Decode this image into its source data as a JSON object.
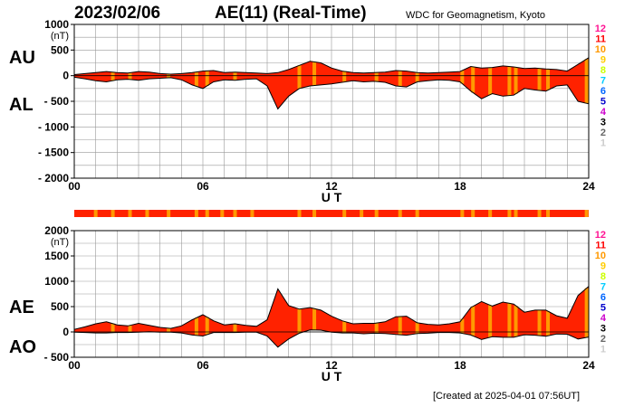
{
  "header": {
    "date": "2023/02/06",
    "title": "AE(11) (Real-Time)",
    "institution": "WDC for Geomagnetism, Kyoto"
  },
  "footer": {
    "created": "[Created at 2025-04-01 07:56UT]"
  },
  "colors": {
    "fill": "#ff2200",
    "highlight": "#ff9900",
    "grid": "#999999"
  },
  "legend_scale": [
    {
      "label": "12",
      "color": "#ff1493"
    },
    {
      "label": "11",
      "color": "#ff0000"
    },
    {
      "label": "10",
      "color": "#ff9900"
    },
    {
      "label": "9",
      "color": "#ffcc00"
    },
    {
      "label": "8",
      "color": "#ccff00"
    },
    {
      "label": "7",
      "color": "#00ccff"
    },
    {
      "label": "6",
      "color": "#0066ff"
    },
    {
      "label": "5",
      "color": "#0000cc"
    },
    {
      "label": "4",
      "color": "#cc00cc"
    },
    {
      "label": "3",
      "color": "#000000"
    },
    {
      "label": "2",
      "color": "#666666"
    },
    {
      "label": "1",
      "color": "#cccccc"
    }
  ],
  "chart_data": [
    {
      "type": "area",
      "labels_left": [
        "AU",
        "AL"
      ],
      "ylabel": "(nT)",
      "xlabel": "U T",
      "ylim": [
        -2000,
        1000
      ],
      "yticks": [
        "1000",
        "500",
        "0",
        "- 500",
        "- 1000",
        "- 1500",
        "- 2000"
      ],
      "xticks": [
        "00",
        "06",
        "12",
        "18",
        "24"
      ],
      "grid": true,
      "x": [
        0,
        0.5,
        1,
        1.5,
        2,
        2.5,
        3,
        3.5,
        4,
        4.5,
        5,
        5.5,
        6,
        6.5,
        7,
        7.5,
        8,
        8.5,
        9,
        9.5,
        10,
        10.5,
        11,
        11.5,
        12,
        12.5,
        13,
        13.5,
        14,
        14.5,
        15,
        15.5,
        16,
        16.5,
        17,
        17.5,
        18,
        18.5,
        19,
        19.5,
        20,
        20.5,
        21,
        21.5,
        22,
        22.5,
        23,
        23.5,
        24
      ],
      "series": [
        {
          "values": [
            20,
            40,
            60,
            80,
            60,
            50,
            80,
            70,
            40,
            30,
            40,
            60,
            90,
            100,
            60,
            70,
            60,
            50,
            40,
            60,
            120,
            200,
            280,
            250,
            150,
            90,
            60,
            50,
            60,
            70,
            100,
            90,
            60,
            50,
            60,
            70,
            80,
            180,
            150,
            160,
            190,
            170,
            140,
            150,
            130,
            120,
            90,
            220,
            350
          ]
        },
        {
          "values": [
            -30,
            -60,
            -100,
            -120,
            -80,
            -70,
            -90,
            -60,
            -50,
            -40,
            -80,
            -180,
            -250,
            -120,
            -80,
            -90,
            -70,
            -60,
            -200,
            -650,
            -400,
            -250,
            -200,
            -180,
            -160,
            -130,
            -100,
            -120,
            -110,
            -130,
            -200,
            -220,
            -120,
            -100,
            -80,
            -90,
            -120,
            -300,
            -450,
            -350,
            -400,
            -380,
            -250,
            -280,
            -300,
            -200,
            -180,
            -500,
            -550
          ]
        }
      ],
      "highlight_hours": [
        1.8,
        2.6,
        4.4,
        5.7,
        6.2,
        7.5,
        10.5,
        11.2,
        12.6,
        14.1,
        15.2,
        16.0,
        18.1,
        18.6,
        19.4,
        20.3,
        20.6,
        21.7,
        22.1,
        23.9
      ]
    },
    {
      "type": "area",
      "labels_left": [
        "AE",
        "AO"
      ],
      "ylabel": "(nT)",
      "xlabel": "U T",
      "ylim": [
        -500,
        2000
      ],
      "yticks": [
        "2000",
        "1500",
        "1000",
        "500",
        "0",
        "- 500"
      ],
      "xticks": [
        "00",
        "06",
        "12",
        "18",
        "24"
      ],
      "grid": true,
      "x": [
        0,
        0.5,
        1,
        1.5,
        2,
        2.5,
        3,
        3.5,
        4,
        4.5,
        5,
        5.5,
        6,
        6.5,
        7,
        7.5,
        8,
        8.5,
        9,
        9.5,
        10,
        10.5,
        11,
        11.5,
        12,
        12.5,
        13,
        13.5,
        14,
        14.5,
        15,
        15.5,
        16,
        16.5,
        17,
        17.5,
        18,
        18.5,
        19,
        19.5,
        20,
        20.5,
        21,
        21.5,
        22,
        22.5,
        23,
        23.5,
        24
      ],
      "series": [
        {
          "values": [
            50,
            100,
            160,
            200,
            140,
            120,
            170,
            130,
            90,
            70,
            120,
            240,
            340,
            220,
            140,
            160,
            130,
            110,
            240,
            850,
            520,
            450,
            480,
            430,
            310,
            220,
            160,
            170,
            170,
            200,
            300,
            310,
            180,
            150,
            140,
            160,
            200,
            480,
            600,
            510,
            590,
            550,
            390,
            430,
            430,
            320,
            270,
            720,
            900
          ]
        },
        {
          "values": [
            -5,
            -10,
            -20,
            -20,
            -10,
            -10,
            -5,
            5,
            -5,
            -5,
            -20,
            -60,
            -80,
            -10,
            -10,
            -10,
            -5,
            -5,
            -80,
            -300,
            -140,
            -25,
            40,
            35,
            -5,
            -20,
            -20,
            -35,
            -25,
            -30,
            -50,
            -65,
            -30,
            -25,
            -10,
            -10,
            -20,
            -60,
            -150,
            -95,
            -105,
            -105,
            -55,
            -65,
            -85,
            -40,
            -45,
            -140,
            -100
          ]
        }
      ],
      "highlight_hours": [
        1.8,
        2.6,
        4.4,
        5.7,
        6.2,
        7.5,
        10.5,
        11.2,
        12.6,
        14.1,
        15.2,
        16.0,
        18.1,
        18.6,
        19.4,
        20.3,
        20.6,
        21.7,
        22.1,
        23.9
      ]
    }
  ],
  "activity_bar_hours": [
    1.0,
    1.8,
    2.6,
    3.4,
    4.4,
    5.7,
    6.2,
    6.9,
    7.5,
    8.3,
    10.5,
    11.2,
    12.6,
    13.4,
    14.1,
    15.2,
    16.0,
    18.1,
    18.6,
    19.4,
    20.3,
    20.6,
    21.7,
    22.1,
    23.9
  ]
}
